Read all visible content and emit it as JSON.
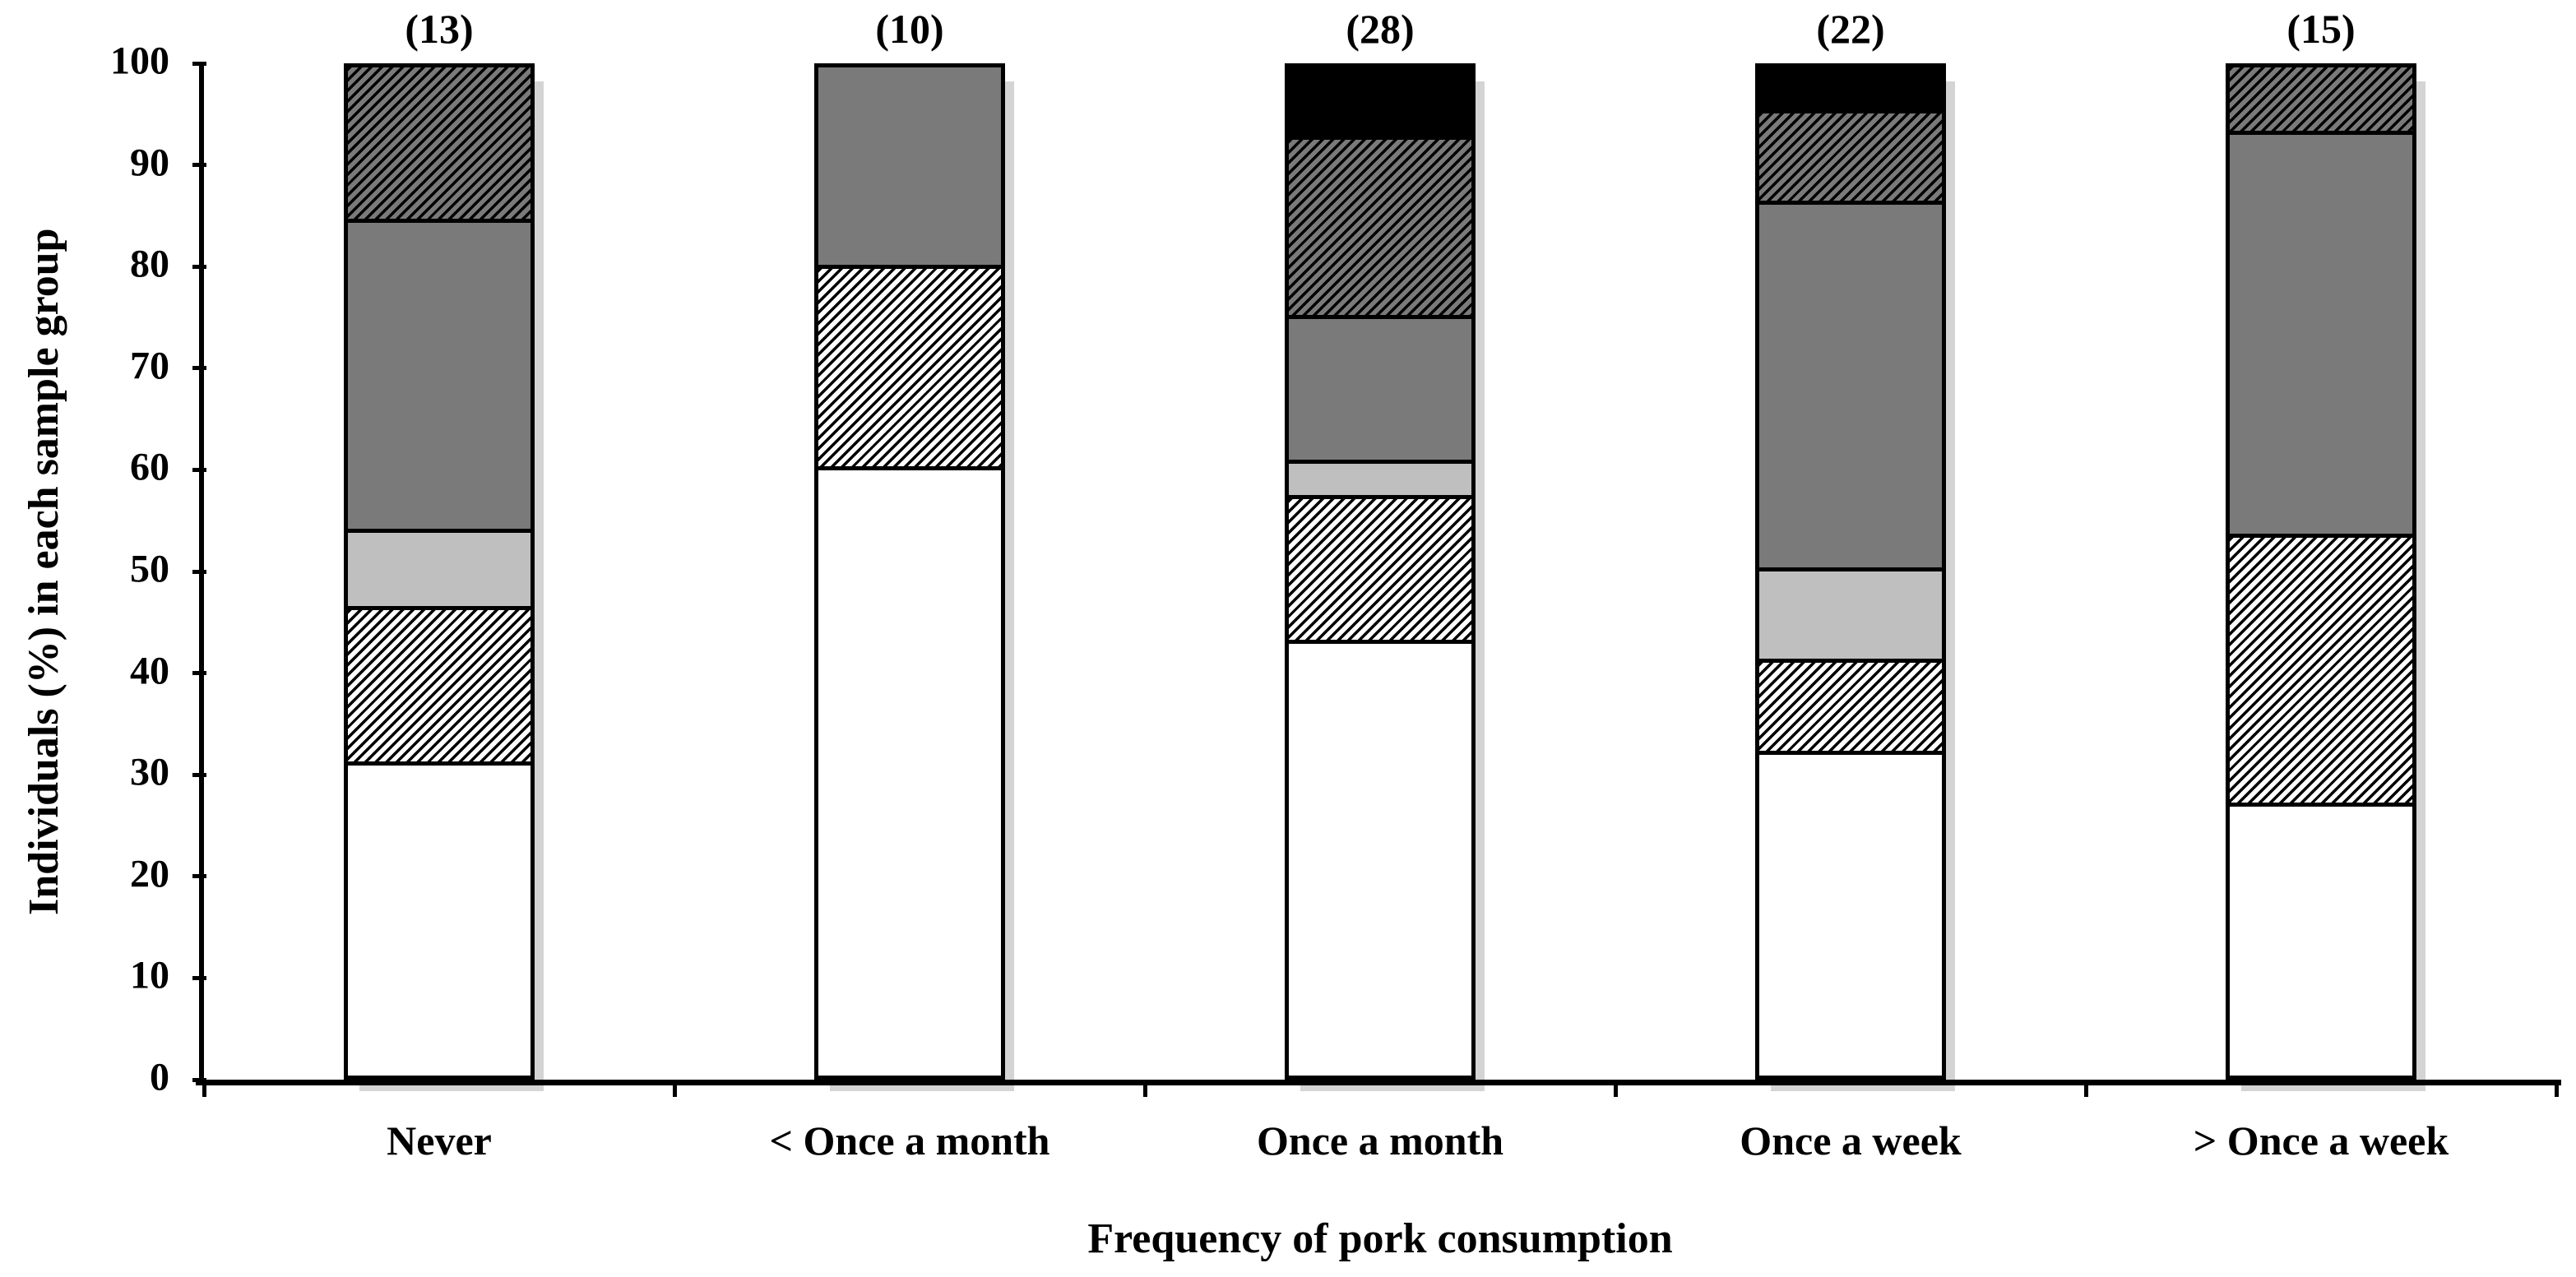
{
  "chart_data": {
    "type": "bar",
    "stacked": true,
    "orientation": "vertical",
    "title": "",
    "xlabel": "Frequency of pork consumption",
    "ylabel": "Individuals (%) in each sample group",
    "ylim": [
      0,
      100
    ],
    "yticks": [
      0,
      10,
      20,
      30,
      40,
      50,
      60,
      70,
      80,
      90,
      100
    ],
    "grid": false,
    "legend": "none",
    "categories": [
      "Never",
      "< Once a month",
      "Once a month",
      "Once a week",
      "> Once a week"
    ],
    "bar_count_labels": [
      "(13)",
      "(10)",
      "(28)",
      "(22)",
      "(15)"
    ],
    "series": [
      {
        "name": "white-solid",
        "pattern": "solid",
        "fill": "#ffffff",
        "values": [
          30.77,
          60.0,
          42.86,
          31.82,
          26.67
        ]
      },
      {
        "name": "black-hatch-on-white",
        "pattern": "diagonal-hatch",
        "fill": "#ffffff",
        "hatch": "#000000",
        "values": [
          15.38,
          20.0,
          14.29,
          9.09,
          26.67
        ]
      },
      {
        "name": "light-gray-solid",
        "pattern": "solid",
        "fill": "#bfbfbf",
        "values": [
          7.69,
          0,
          3.57,
          9.09,
          0
        ]
      },
      {
        "name": "dark-gray-solid",
        "pattern": "solid",
        "fill": "#7a7a7a",
        "values": [
          30.77,
          20.0,
          14.29,
          36.36,
          40.0
        ]
      },
      {
        "name": "black-hatch-on-gray",
        "pattern": "diagonal-hatch",
        "fill": "#7a7a7a",
        "hatch": "#000000",
        "values": [
          15.39,
          0,
          17.85,
          9.09,
          6.66
        ]
      },
      {
        "name": "black-solid",
        "pattern": "solid",
        "fill": "#000000",
        "values": [
          0,
          0,
          7.14,
          4.55,
          0
        ]
      }
    ],
    "colors": {
      "axis": "#000000",
      "bar_border": "#000000",
      "bar_shadow": "#d4d4d4",
      "light_gray": "#bfbfbf",
      "dark_gray": "#7a7a7a",
      "black": "#000000",
      "white": "#ffffff"
    }
  }
}
